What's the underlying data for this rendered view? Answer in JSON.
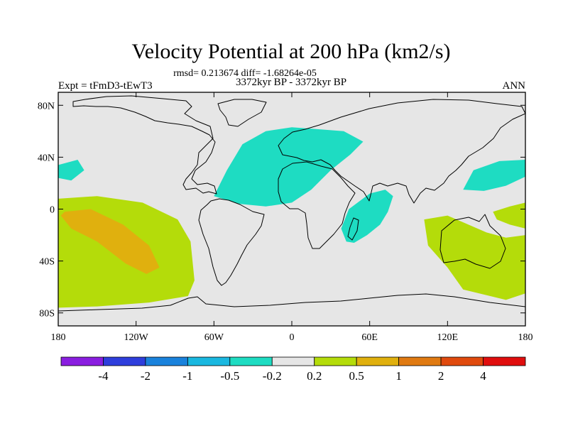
{
  "chart_data": {
    "type": "heatmap",
    "title": "Velocity Potential at 200 hPa (km2/s)",
    "subtitle": "rmsd= 0.213674 diff= -1.68264e-05",
    "left_label": "Expt = tFmD3-tEwT3",
    "center_label": "3372kyr BP - 3372kyr BP",
    "right_label": "ANN",
    "x_ticks": [
      "180",
      "120W",
      "60W",
      "0",
      "60E",
      "120E",
      "180"
    ],
    "x_tick_values": [
      -180,
      -120,
      -60,
      0,
      60,
      120,
      180
    ],
    "y_ticks": [
      "80N",
      "40N",
      "0",
      "40S",
      "80S"
    ],
    "y_tick_values": [
      80,
      40,
      0,
      -40,
      -80
    ],
    "xlim": [
      -180,
      180
    ],
    "ylim": [
      -90,
      90
    ],
    "colorbar": {
      "labels": [
        "-4",
        "-2",
        "-1",
        "-0.5",
        "-0.2",
        "0.2",
        "0.5",
        "1",
        "2",
        "4"
      ],
      "colors": [
        "#8a1ee0",
        "#2e3edc",
        "#1a82dc",
        "#1ab8e0",
        "#1edcc2",
        "#e6e6e6",
        "#b4dc0a",
        "#e0b00e",
        "#e07a12",
        "#e04a0e",
        "#e00e0e"
      ]
    },
    "regions": [
      {
        "name": "north-atlantic-europe-negative",
        "level": "-0.5 to -0.2",
        "color": "#1edcc2",
        "lonlat": [
          [
            -60,
            10
          ],
          [
            -50,
            30
          ],
          [
            -38,
            50
          ],
          [
            -20,
            60
          ],
          [
            0,
            63
          ],
          [
            15,
            62
          ],
          [
            40,
            60
          ],
          [
            55,
            52
          ],
          [
            45,
            42
          ],
          [
            30,
            30
          ],
          [
            15,
            15
          ],
          [
            0,
            5
          ],
          [
            -20,
            2
          ],
          [
            -40,
            4
          ]
        ]
      },
      {
        "name": "indian-ocean-negative",
        "level": "-0.5 to -0.2",
        "color": "#1edcc2",
        "lonlat": [
          [
            42,
            -25
          ],
          [
            38,
            -15
          ],
          [
            44,
            0
          ],
          [
            60,
            12
          ],
          [
            72,
            15
          ],
          [
            78,
            10
          ],
          [
            74,
            -2
          ],
          [
            68,
            -12
          ],
          [
            58,
            -20
          ],
          [
            48,
            -26
          ]
        ]
      },
      {
        "name": "west-pacific-negative",
        "level": "-0.5 to -0.2",
        "color": "#1edcc2",
        "lonlat": [
          [
            132,
            15
          ],
          [
            140,
            30
          ],
          [
            160,
            37
          ],
          [
            180,
            38
          ],
          [
            180,
            25
          ],
          [
            165,
            18
          ],
          [
            148,
            14
          ]
        ]
      },
      {
        "name": "east-pacific-edge-negative",
        "level": "-0.5 to -0.2",
        "color": "#1edcc2",
        "lonlat": [
          [
            -180,
            34
          ],
          [
            -165,
            38
          ],
          [
            -160,
            30
          ],
          [
            -170,
            22
          ],
          [
            -180,
            24
          ]
        ]
      },
      {
        "name": "south-pacific-positive",
        "level": "0.2 to 0.5",
        "color": "#b4dc0a",
        "lonlat": [
          [
            -180,
            8
          ],
          [
            -150,
            10
          ],
          [
            -115,
            5
          ],
          [
            -88,
            -8
          ],
          [
            -78,
            -25
          ],
          [
            -75,
            -55
          ],
          [
            -80,
            -67
          ],
          [
            -110,
            -72
          ],
          [
            -150,
            -75
          ],
          [
            -180,
            -76
          ]
        ]
      },
      {
        "name": "south-pacific-core-positive",
        "level": "0.5 to 1",
        "color": "#e0b00e",
        "lonlat": [
          [
            -175,
            -2
          ],
          [
            -155,
            0
          ],
          [
            -130,
            -12
          ],
          [
            -110,
            -28
          ],
          [
            -102,
            -45
          ],
          [
            -112,
            -50
          ],
          [
            -128,
            -42
          ],
          [
            -150,
            -25
          ],
          [
            -170,
            -15
          ],
          [
            -178,
            -5
          ]
        ]
      },
      {
        "name": "australia-positive",
        "level": "0.2 to 0.5",
        "color": "#b4dc0a",
        "lonlat": [
          [
            102,
            -8
          ],
          [
            120,
            -5
          ],
          [
            150,
            -18
          ],
          [
            165,
            -22
          ],
          [
            180,
            -20
          ],
          [
            180,
            -65
          ],
          [
            165,
            -70
          ],
          [
            132,
            -62
          ],
          [
            120,
            -45
          ],
          [
            105,
            -28
          ]
        ]
      },
      {
        "name": "central-pacific-positive",
        "level": "0.2 to 0.5",
        "color": "#b4dc0a",
        "lonlat": [
          [
            155,
            -2
          ],
          [
            168,
            2
          ],
          [
            180,
            5
          ],
          [
            180,
            -15
          ],
          [
            168,
            -12
          ],
          [
            158,
            -8
          ]
        ]
      }
    ]
  }
}
